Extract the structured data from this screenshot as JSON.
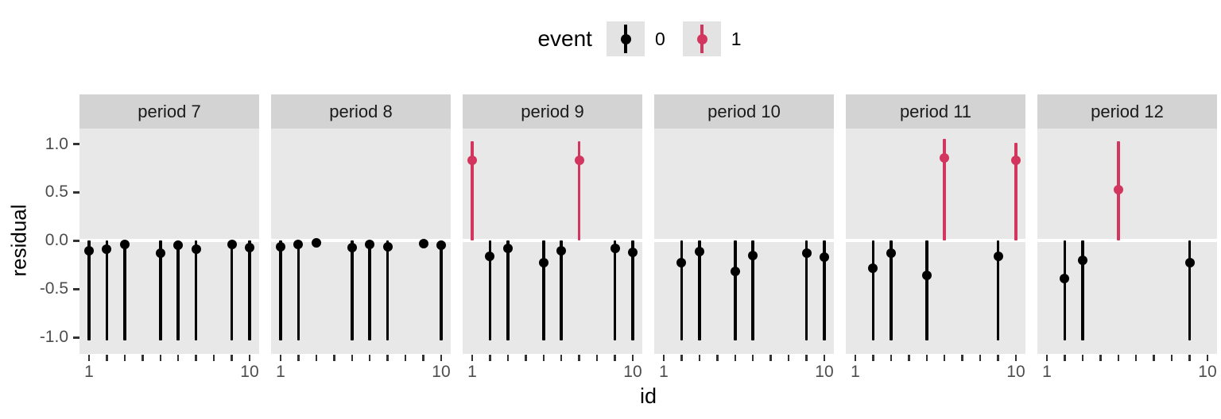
{
  "legend": {
    "title": "event",
    "items": [
      {
        "label": "0",
        "event": 0
      },
      {
        "label": "1",
        "event": 1
      }
    ]
  },
  "axes": {
    "x_title": "id",
    "y_title": "residual",
    "y_ticks": [
      {
        "label": "1.0",
        "value": 1.0
      },
      {
        "label": "0.5",
        "value": 0.5
      },
      {
        "label": "0.0",
        "value": 0.0
      },
      {
        "label": "-0.5",
        "value": -0.5
      },
      {
        "label": "-1.0",
        "value": -1.0
      }
    ],
    "x_tick_ids": [
      1,
      2,
      3,
      4,
      5,
      6,
      7,
      8,
      9,
      10
    ],
    "x_tick_labels": [
      {
        "label": "1",
        "id": 1
      },
      {
        "label": "10",
        "id": 10
      }
    ]
  },
  "colors": {
    "event0": "#000000",
    "event1": "#d2355e",
    "panel_bg": "#e8e8e8",
    "strip_bg": "#d3d3d3",
    "legend_key_bg": "#e3e3e3",
    "zero_line": "#ffffff",
    "axis_text": "#4d4d4d"
  },
  "chart_data": {
    "type": "pointrange",
    "facet_variable": "period",
    "x_variable": "id",
    "y_variable": "residual",
    "color_variable": "event",
    "x_range": [
      1,
      10
    ],
    "y_range": [
      -1.17,
      1.16
    ],
    "grid": "zero-line-only",
    "legend_position": "top",
    "facets": [
      {
        "label": "period 7",
        "points": [
          {
            "id": 1,
            "y": -0.1,
            "event": 0,
            "line": true,
            "ymin": -1.03,
            "ymax": 0
          },
          {
            "id": 2,
            "y": -0.09,
            "event": 0,
            "line": true,
            "ymin": -1.03,
            "ymax": 0
          },
          {
            "id": 3,
            "y": -0.04,
            "event": 0,
            "line": true,
            "ymin": -1.03,
            "ymax": 0
          },
          {
            "id": 5,
            "y": -0.13,
            "event": 0,
            "line": true,
            "ymin": -1.03,
            "ymax": 0
          },
          {
            "id": 6,
            "y": -0.05,
            "event": 0,
            "line": true,
            "ymin": -1.03,
            "ymax": 0
          },
          {
            "id": 7,
            "y": -0.09,
            "event": 0,
            "line": true,
            "ymin": -1.03,
            "ymax": 0
          },
          {
            "id": 9,
            "y": -0.04,
            "event": 0,
            "line": true,
            "ymin": -1.03,
            "ymax": 0
          },
          {
            "id": 10,
            "y": -0.07,
            "event": 0,
            "line": true,
            "ymin": -1.03,
            "ymax": 0
          }
        ]
      },
      {
        "label": "period 8",
        "points": [
          {
            "id": 1,
            "y": -0.06,
            "event": 0,
            "line": true,
            "ymin": -1.03,
            "ymax": 0
          },
          {
            "id": 2,
            "y": -0.04,
            "event": 0,
            "line": true,
            "ymin": -1.03,
            "ymax": 0
          },
          {
            "id": 3,
            "y": -0.02,
            "event": 0,
            "line": false,
            "ymin": -0.02,
            "ymax": -0.02
          },
          {
            "id": 5,
            "y": -0.07,
            "event": 0,
            "line": true,
            "ymin": -1.03,
            "ymax": 0
          },
          {
            "id": 6,
            "y": -0.04,
            "event": 0,
            "line": true,
            "ymin": -1.03,
            "ymax": 0
          },
          {
            "id": 7,
            "y": -0.06,
            "event": 0,
            "line": true,
            "ymin": -1.03,
            "ymax": 0
          },
          {
            "id": 9,
            "y": -0.03,
            "event": 0,
            "line": false,
            "ymin": -0.03,
            "ymax": -0.03
          },
          {
            "id": 10,
            "y": -0.05,
            "event": 0,
            "line": true,
            "ymin": -1.03,
            "ymax": 0
          }
        ]
      },
      {
        "label": "period 9",
        "points": [
          {
            "id": 1,
            "y": 0.83,
            "event": 1,
            "line": true,
            "ymin": 0,
            "ymax": 1.03
          },
          {
            "id": 2,
            "y": -0.16,
            "event": 0,
            "line": true,
            "ymin": -1.03,
            "ymax": 0
          },
          {
            "id": 3,
            "y": -0.08,
            "event": 0,
            "line": true,
            "ymin": -1.03,
            "ymax": 0
          },
          {
            "id": 5,
            "y": -0.23,
            "event": 0,
            "line": true,
            "ymin": -1.03,
            "ymax": 0
          },
          {
            "id": 6,
            "y": -0.1,
            "event": 0,
            "line": true,
            "ymin": -1.03,
            "ymax": 0
          },
          {
            "id": 7,
            "y": 0.83,
            "event": 1,
            "line": true,
            "ymin": 0,
            "ymax": 1.03
          },
          {
            "id": 9,
            "y": -0.08,
            "event": 0,
            "line": true,
            "ymin": -1.03,
            "ymax": 0
          },
          {
            "id": 10,
            "y": -0.12,
            "event": 0,
            "line": true,
            "ymin": -1.03,
            "ymax": 0
          }
        ]
      },
      {
        "label": "period 10",
        "points": [
          {
            "id": 2,
            "y": -0.23,
            "event": 0,
            "line": true,
            "ymin": -1.03,
            "ymax": 0
          },
          {
            "id": 3,
            "y": -0.11,
            "event": 0,
            "line": true,
            "ymin": -1.03,
            "ymax": 0
          },
          {
            "id": 5,
            "y": -0.32,
            "event": 0,
            "line": true,
            "ymin": -1.03,
            "ymax": 0
          },
          {
            "id": 6,
            "y": -0.15,
            "event": 0,
            "line": true,
            "ymin": -1.03,
            "ymax": 0
          },
          {
            "id": 9,
            "y": -0.13,
            "event": 0,
            "line": true,
            "ymin": -1.03,
            "ymax": 0
          },
          {
            "id": 10,
            "y": -0.17,
            "event": 0,
            "line": true,
            "ymin": -1.03,
            "ymax": 0
          }
        ]
      },
      {
        "label": "period 11",
        "points": [
          {
            "id": 2,
            "y": -0.28,
            "event": 0,
            "line": true,
            "ymin": -1.03,
            "ymax": 0
          },
          {
            "id": 3,
            "y": -0.13,
            "event": 0,
            "line": true,
            "ymin": -1.03,
            "ymax": 0
          },
          {
            "id": 5,
            "y": -0.36,
            "event": 0,
            "line": true,
            "ymin": -1.03,
            "ymax": 0
          },
          {
            "id": 6,
            "y": 0.86,
            "event": 1,
            "line": true,
            "ymin": 0,
            "ymax": 1.05
          },
          {
            "id": 9,
            "y": -0.16,
            "event": 0,
            "line": true,
            "ymin": -1.03,
            "ymax": 0
          },
          {
            "id": 10,
            "y": 0.83,
            "event": 1,
            "line": true,
            "ymin": 0,
            "ymax": 1.01
          }
        ]
      },
      {
        "label": "period 12",
        "points": [
          {
            "id": 2,
            "y": -0.39,
            "event": 0,
            "line": true,
            "ymin": -1.03,
            "ymax": 0
          },
          {
            "id": 3,
            "y": -0.2,
            "event": 0,
            "line": true,
            "ymin": -1.03,
            "ymax": 0
          },
          {
            "id": 5,
            "y": 0.53,
            "event": 1,
            "line": true,
            "ymin": 0,
            "ymax": 1.03
          },
          {
            "id": 9,
            "y": -0.23,
            "event": 0,
            "line": true,
            "ymin": -1.03,
            "ymax": 0
          }
        ]
      }
    ]
  }
}
